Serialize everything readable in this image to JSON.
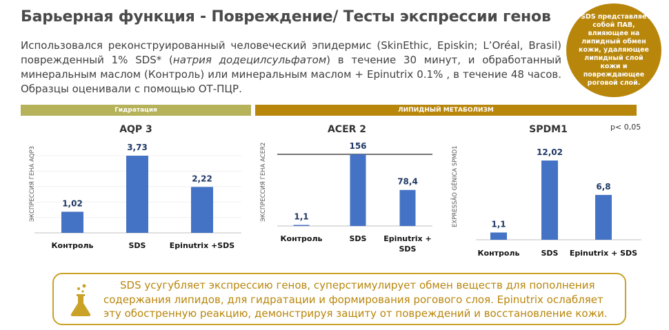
{
  "title": "Барьерная функция - Повреждение/ Тесты экспрессии генов",
  "intro": {
    "part1": "Использовался реконструированный человеческий эпидермис (SkinEthic, Episkin; L’Oréal, Brasil) поврежденный 1% SDS* (",
    "italic": "натрия додецилсульфатом",
    "part2": ") в течение 30 минут, и обработанный минеральным маслом (Контроль) или минеральным маслом + Epinutrix 0.1% , в течение 48 часов. Образцы оценивали с помощью ОТ-ПЦР."
  },
  "badge": "*SDS представляет собой ПАВ, влияющее на липидный обмен кожи, удаляющее липидный слой кожи и повреждающее роговой слой.",
  "bands": {
    "hydration": "Гидратация",
    "lipid": "ЛИПИДНЫЙ МЕТАБОЛИЗМ"
  },
  "p_note": "p< 0,05",
  "conclusion": "SDS усугубляет экспрессию генов, суперстимулирует обмен веществ для пополнения содержания липидов, для гидратации и формирования рогового слоя. Epinutrix ослабляет эту обостренную реакцию, демонстрируя защиту от повреждений и восстановление кожи.",
  "colors": {
    "bar": "#4472c4",
    "value_label": "#1f3864",
    "badge": "#b8860b",
    "band_hydration": "#b5b25a",
    "band_lipid": "#b8860b",
    "conclusion_text": "#b8860b",
    "conclusion_border": "#c9a227"
  },
  "icons": {
    "conclusion": "flask-icon"
  },
  "chart_data": [
    {
      "type": "bar",
      "title": "AQP 3",
      "ylabel": "ЭКСПРЕССИЯ ГЕНА AQP3",
      "categories": [
        "Контроль",
        "SDS",
        "Epinutrix +SDS"
      ],
      "values": [
        1.02,
        3.73,
        2.22
      ],
      "value_labels": [
        "1,02",
        "3,73",
        "2,22"
      ],
      "grid": false,
      "reference_line": false
    },
    {
      "type": "bar",
      "title": "ACER 2",
      "ylabel": "ЭКСПРЕССИЯ ГЕНА ACER2",
      "categories": [
        "Контроль",
        "SDS",
        "Epinutrix + SDS"
      ],
      "values": [
        1.1,
        156,
        78.4
      ],
      "value_labels": [
        "1,1",
        "156",
        "78,4"
      ],
      "grid": false,
      "reference_line": true
    },
    {
      "type": "bar",
      "title": "SPDM1",
      "ylabel": "EXPRESSÃO GÊNICA SPMD1",
      "categories": [
        "Контроль",
        "SDS",
        "Epinutrix + SDS"
      ],
      "values": [
        1.1,
        12.02,
        6.8
      ],
      "value_labels": [
        "1,1",
        "12,02",
        "6,8"
      ],
      "grid": false,
      "reference_line": false
    }
  ]
}
